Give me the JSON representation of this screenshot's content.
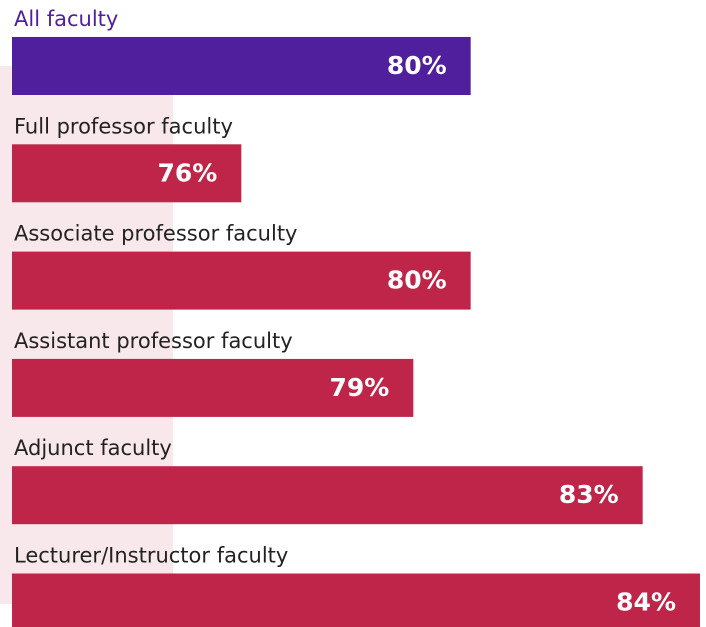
{
  "chart_data": {
    "type": "bar",
    "orientation": "horizontal",
    "categories": [
      "All faculty",
      "Full professor faculty",
      "Associate professor faculty",
      "Assistant professor faculty",
      "Adjunct faculty",
      "Lecturer/Instructor faculty"
    ],
    "values": [
      80,
      76,
      80,
      79,
      83,
      84
    ],
    "value_labels": [
      "80%",
      "76%",
      "80%",
      "79%",
      "83%",
      "84%"
    ],
    "colors": [
      "#4f1f9e",
      "#be2548",
      "#be2548",
      "#be2548",
      "#be2548",
      "#be2548"
    ],
    "xlim": [
      72,
      84
    ]
  }
}
